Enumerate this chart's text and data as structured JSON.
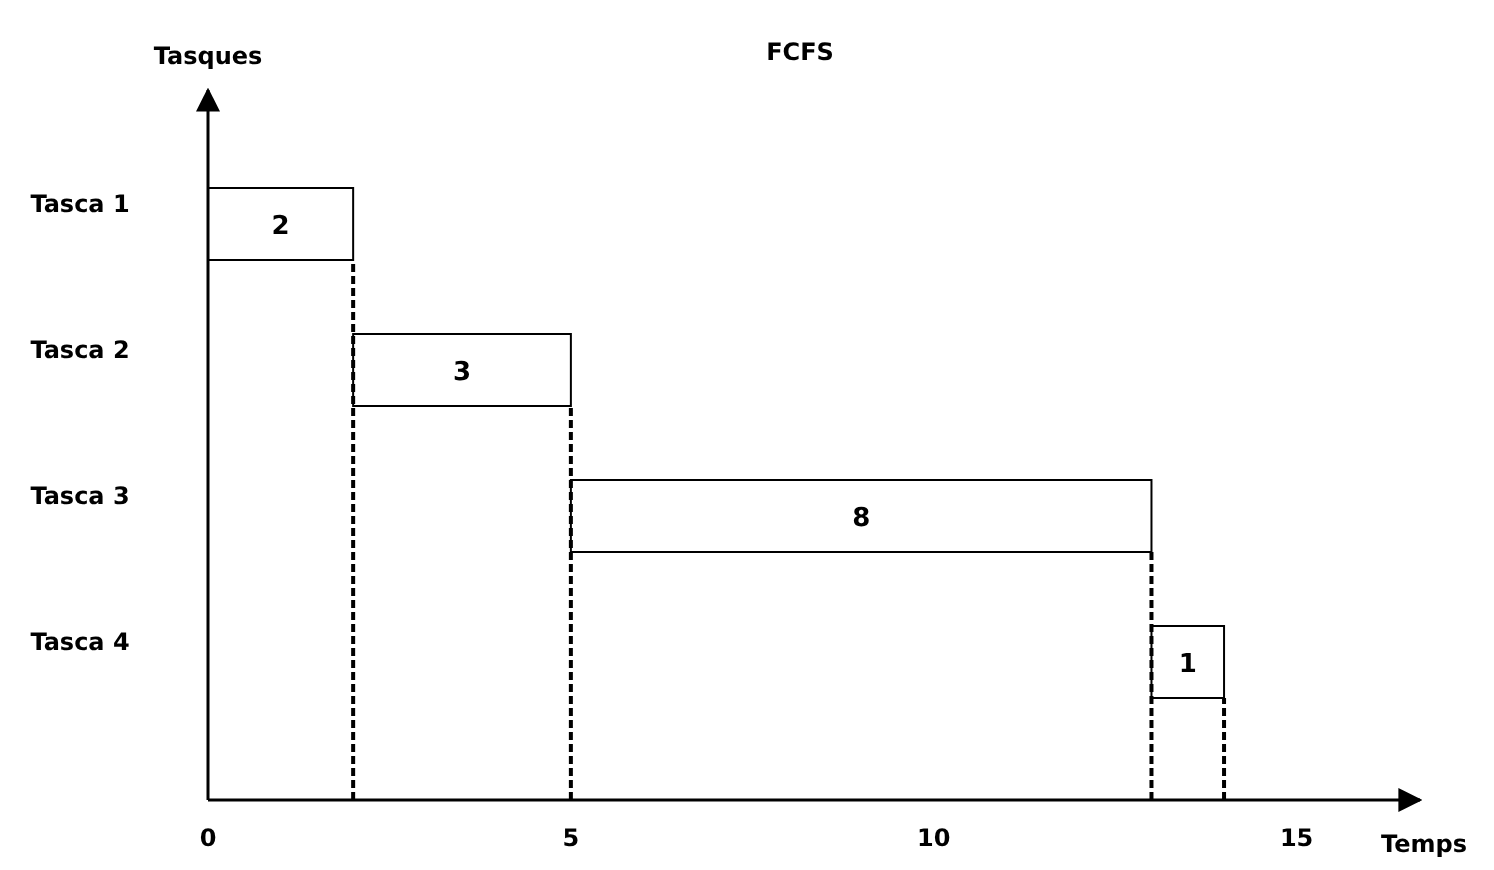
{
  "chart_data": {
    "type": "bar",
    "orientation": "horizontal",
    "title": "FCFS",
    "xlabel": "Temps",
    "ylabel": "Tasques",
    "categories": [
      "Tasca 1",
      "Tasca 2",
      "Tasca 3",
      "Tasca 4"
    ],
    "base": [
      0,
      2,
      5,
      13
    ],
    "values": [
      2,
      3,
      8,
      1
    ],
    "color": "#ffffff",
    "data_labels": true,
    "xlim": [
      0,
      16.7
    ],
    "xticks": [
      0,
      5,
      10,
      15
    ],
    "ref_lines": [
      {
        "axis": "x",
        "value": 2,
        "color": "#000000",
        "line_style": "dashed"
      },
      {
        "axis": "x",
        "value": 5,
        "color": "#000000",
        "line_style": "dashed"
      },
      {
        "axis": "x",
        "value": 13,
        "color": "#000000",
        "line_style": "dashed"
      },
      {
        "axis": "x",
        "value": 14,
        "color": "#000000",
        "line_style": "dashed"
      }
    ],
    "tick_labels": "x"
  }
}
